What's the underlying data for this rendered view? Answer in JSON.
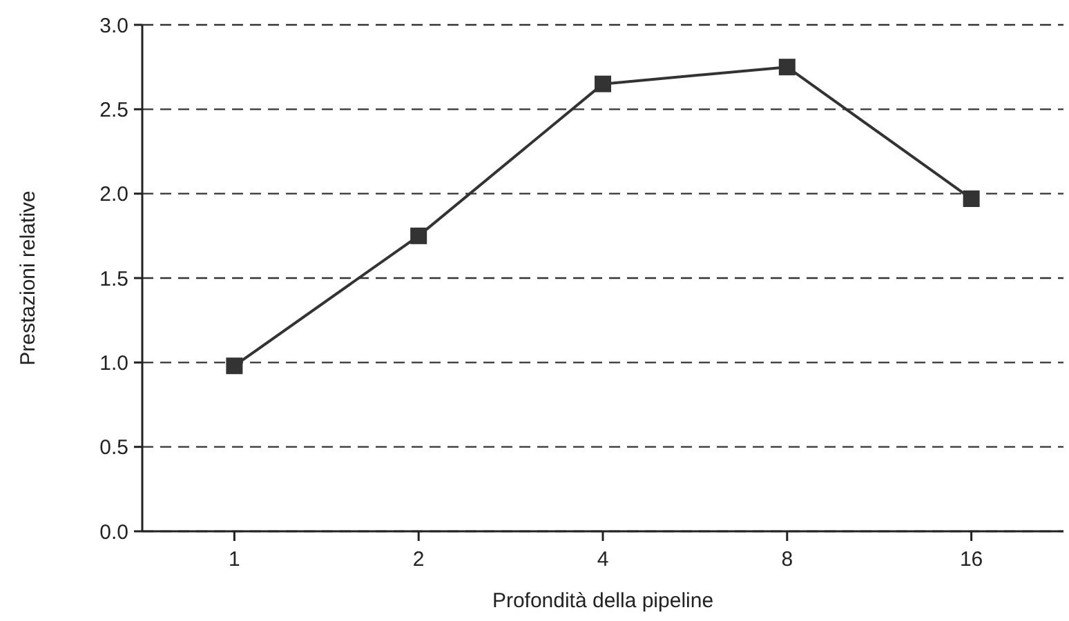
{
  "chart_data": {
    "type": "line",
    "xlabel": "Profondità della pipeline",
    "ylabel": "Prestazioni relative",
    "categories": [
      "1",
      "2",
      "4",
      "8",
      "16"
    ],
    "series": [
      {
        "color": "#333333",
        "values": [
          0.98,
          1.75,
          2.65,
          2.75,
          1.97
        ]
      }
    ],
    "ylim": [
      0,
      3
    ],
    "yticks": [
      {
        "value": 0,
        "label": "0.0"
      },
      {
        "value": 0.5,
        "label": "0.5"
      },
      {
        "value": 1,
        "label": "1.0"
      },
      {
        "value": 1.5,
        "label": "1.5"
      },
      {
        "value": 2,
        "label": "2.0"
      },
      {
        "value": 2.5,
        "label": "2.5"
      },
      {
        "value": 3,
        "label": "3.0"
      }
    ],
    "grid": "y",
    "marker": "square",
    "line_style": "solid"
  }
}
